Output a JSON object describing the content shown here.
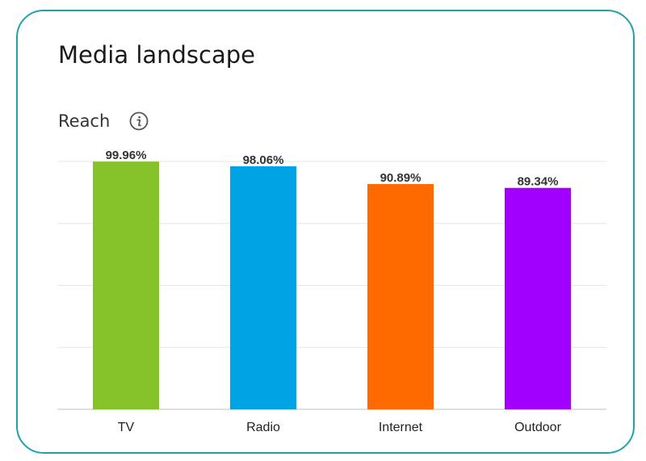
{
  "card": {
    "title": "Media landscape",
    "subtitle": "Reach",
    "info_icon": "info-icon"
  },
  "colors": {
    "border": "#1fa3a8",
    "grid": "#e6e6e6",
    "axis": "#cccccc"
  },
  "chart_data": {
    "type": "bar",
    "categories": [
      "TV",
      "Radio",
      "Internet",
      "Outdoor"
    ],
    "values": [
      99.96,
      98.06,
      90.89,
      89.34
    ],
    "value_labels": [
      "99.96%",
      "98.06%",
      "90.89%",
      "89.34%"
    ],
    "colors": [
      "#86c22a",
      "#00a3e3",
      "#ff6a00",
      "#a100ff"
    ],
    "title": "",
    "xlabel": "",
    "ylabel": "",
    "ylim": [
      0,
      100
    ],
    "grid": true,
    "legend": "none"
  }
}
